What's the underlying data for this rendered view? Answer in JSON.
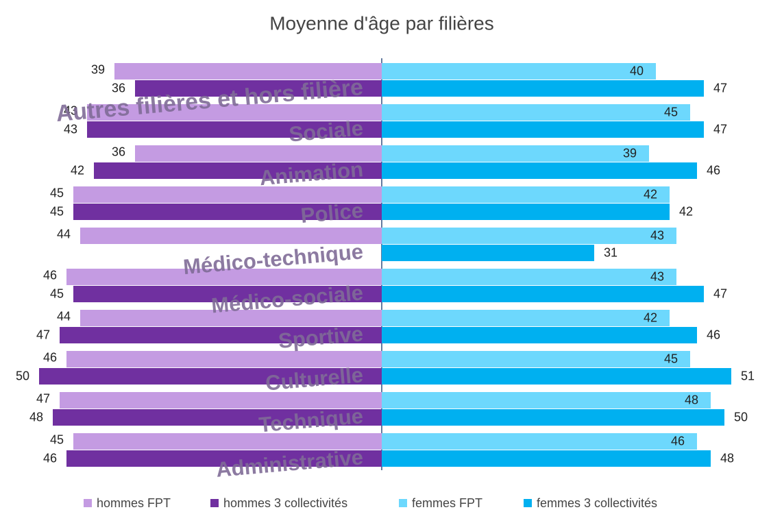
{
  "chart_data": {
    "type": "butterfly-bar",
    "title": "Moyenne d'âge par filières",
    "categories": [
      "Autres filières et hors filière",
      "Sociale",
      "Animation",
      "Police",
      "Médico-technique",
      "Médico-sociale",
      "Sportive",
      "Culturelle",
      "Technique",
      "Administrative"
    ],
    "series": [
      {
        "name": "hommes FPT",
        "color": "#c49be2",
        "side": "left",
        "values": [
          39,
          43,
          36,
          45,
          44,
          46,
          44,
          46,
          47,
          45
        ]
      },
      {
        "name": "hommes 3 collectivités",
        "color": "#7030a0",
        "side": "left",
        "values": [
          36,
          43,
          42,
          45,
          null,
          45,
          47,
          50,
          48,
          46
        ]
      },
      {
        "name": "femmes FPT",
        "color": "#6dd8fd",
        "side": "right",
        "values": [
          40,
          45,
          39,
          42,
          43,
          43,
          42,
          45,
          48,
          46
        ]
      },
      {
        "name": "femmes 3 collectivités",
        "color": "#00b0f0",
        "side": "right",
        "values": [
          47,
          47,
          46,
          42,
          31,
          47,
          46,
          51,
          50,
          48
        ]
      }
    ],
    "legend": "bottom"
  }
}
